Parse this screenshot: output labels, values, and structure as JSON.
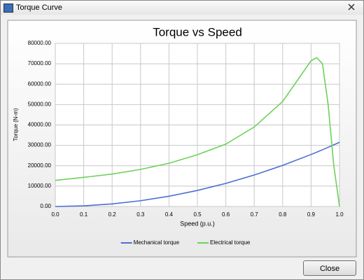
{
  "window": {
    "title": "Torque Curve"
  },
  "chart_data": {
    "type": "line",
    "title": "Torque vs Speed",
    "x_label": "Speed (p.u.)",
    "y_label": "Torque (N-m)",
    "x": [
      0,
      0.1,
      0.2,
      0.3,
      0.4,
      0.5,
      0.6,
      0.7,
      0.8,
      0.9,
      0.92,
      0.94,
      0.96,
      0.98,
      1
    ],
    "series": [
      {
        "name": "Mechanical torque",
        "color": "#4a6fd4",
        "values": [
          0,
          315,
          1260,
          2835,
          5040,
          7875,
          11340,
          15435,
          20160,
          25515,
          26660,
          27830,
          29030,
          30250,
          31500
        ]
      },
      {
        "name": "Electrical torque",
        "color": "#6cd15a",
        "values": [
          12800,
          14300,
          15900,
          18200,
          21200,
          25400,
          30600,
          39000,
          51500,
          71500,
          73000,
          70000,
          50000,
          20000,
          0
        ]
      }
    ],
    "xlim": [
      0,
      1
    ],
    "xticks": [
      {
        "value": 0,
        "label": "0.0"
      },
      0.1,
      0.2,
      0.3,
      0.4,
      0.5,
      0.6,
      0.7,
      0.8,
      0.9,
      {
        "value": 1,
        "label": "1.0"
      }
    ],
    "ylim": [
      0,
      80000
    ],
    "yticks": [
      {
        "value": 0,
        "label": "0.00"
      },
      {
        "value": 10000,
        "label": "10000.00"
      },
      {
        "value": 20000,
        "label": "20000.00"
      },
      {
        "value": 30000,
        "label": "30000.00"
      },
      {
        "value": 40000,
        "label": "40000.00"
      },
      {
        "value": 50000,
        "label": "50000.00"
      },
      {
        "value": 60000,
        "label": "60000.00"
      },
      {
        "value": 70000,
        "label": "70000.00"
      },
      {
        "value": 80000,
        "label": "80000.00"
      }
    ],
    "grid": true,
    "legend": "bottom"
  },
  "buttons": {
    "close": "Close"
  }
}
